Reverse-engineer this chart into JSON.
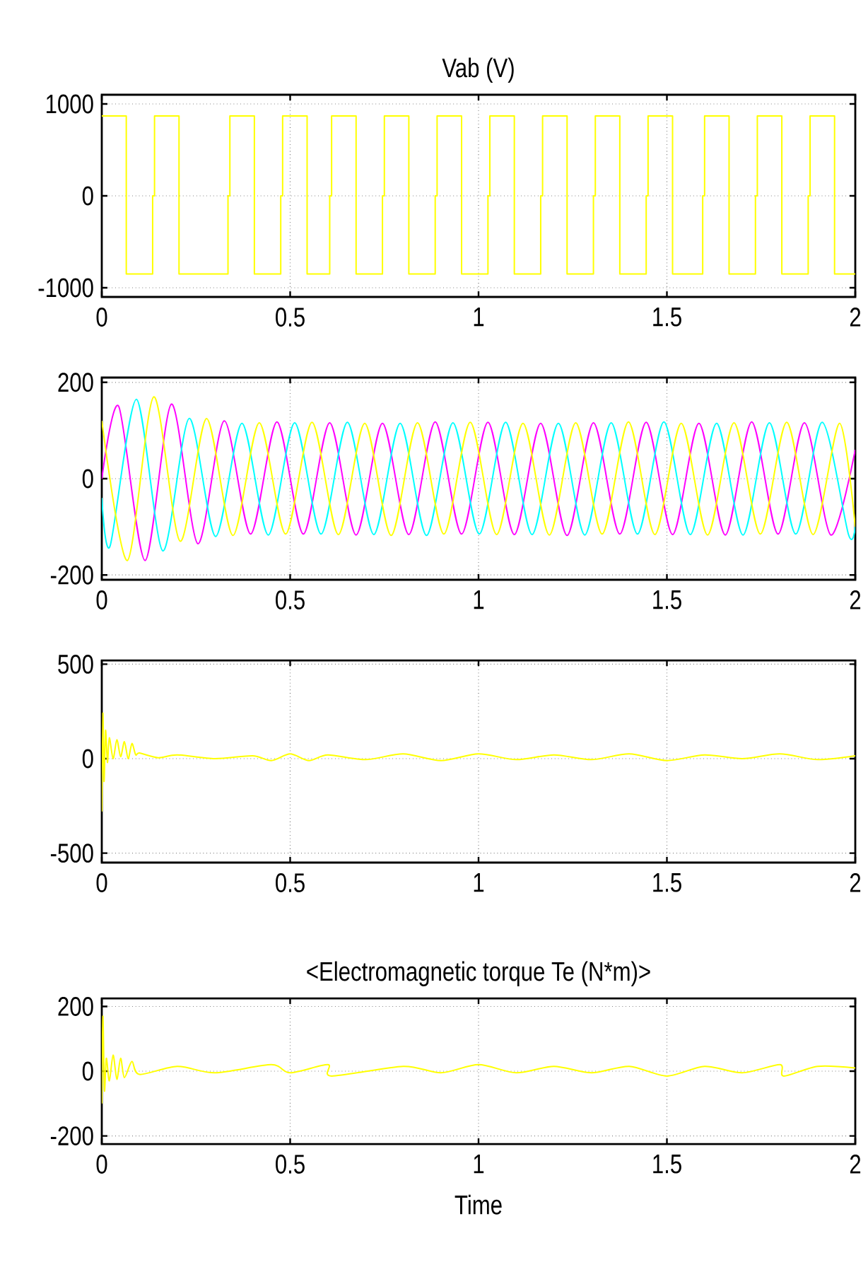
{
  "chart_data": [
    {
      "type": "step",
      "title": "Vab (V)",
      "xlim": [
        0,
        2
      ],
      "ylim": [
        -1100,
        1100
      ],
      "xticks": [
        0,
        0.5,
        1,
        1.5,
        2
      ],
      "yticks": [
        -1000,
        0,
        1000
      ],
      "grid": true,
      "series": [
        {
          "color": "#ffff00",
          "x": [
            0,
            0.065,
            0.135,
            0.14,
            0.205,
            0.335,
            0.34,
            0.405,
            0.475,
            0.48,
            0.545,
            0.605,
            0.61,
            0.675,
            0.745,
            0.75,
            0.815,
            0.885,
            0.89,
            0.955,
            1.025,
            1.03,
            1.095,
            1.165,
            1.17,
            1.235,
            1.305,
            1.31,
            1.375,
            1.445,
            1.45,
            1.515,
            1.595,
            1.6,
            1.665,
            1.735,
            1.74,
            1.805,
            1.875,
            1.88,
            1.945,
            2.0
          ],
          "values": [
            870,
            -850,
            0,
            870,
            -850,
            0,
            870,
            -850,
            0,
            870,
            -850,
            0,
            870,
            -850,
            0,
            870,
            -850,
            0,
            870,
            -850,
            0,
            870,
            -850,
            0,
            870,
            -850,
            0,
            870,
            -850,
            0,
            870,
            -850,
            0,
            870,
            -850,
            0,
            870,
            -850,
            0,
            870,
            -850,
            -850
          ]
        }
      ]
    },
    {
      "type": "line",
      "xlim": [
        0,
        2
      ],
      "ylim": [
        -210,
        210
      ],
      "xticks": [
        0,
        0.5,
        1,
        1.5,
        2
      ],
      "yticks": [
        -200,
        0,
        200
      ],
      "grid": true,
      "series": [
        {
          "color": "#ff00ff",
          "x": [
            0,
            0.045,
            0.115,
            0.185,
            0.255,
            0.325,
            0.395,
            0.465,
            0.535,
            0.605,
            0.675,
            0.745,
            0.815,
            0.885,
            0.955,
            1.025,
            1.095,
            1.165,
            1.235,
            1.305,
            1.375,
            1.445,
            1.515,
            1.585,
            1.655,
            1.725,
            1.795,
            1.865,
            1.935,
            2.0
          ],
          "values": [
            0,
            150,
            -170,
            155,
            -135,
            120,
            -115,
            118,
            -115,
            116,
            -117,
            115,
            -116,
            118,
            -115,
            117,
            -116,
            115,
            -118,
            116,
            -115,
            117,
            -116,
            115,
            -117,
            118,
            -115,
            116,
            -117,
            60
          ]
        },
        {
          "color": "#00ffff",
          "x": [
            0,
            0.022,
            0.092,
            0.162,
            0.232,
            0.302,
            0.372,
            0.442,
            0.512,
            0.582,
            0.652,
            0.722,
            0.792,
            0.862,
            0.932,
            1.002,
            1.072,
            1.142,
            1.212,
            1.282,
            1.352,
            1.422,
            1.492,
            1.562,
            1.632,
            1.702,
            1.772,
            1.842,
            1.912,
            1.982,
            2.0
          ],
          "values": [
            -40,
            -140,
            165,
            -150,
            125,
            -120,
            115,
            -117,
            116,
            -115,
            117,
            -116,
            115,
            -118,
            116,
            -115,
            117,
            -116,
            115,
            -117,
            116,
            -115,
            118,
            -116,
            115,
            -117,
            116,
            -115,
            117,
            -116,
            -100
          ]
        },
        {
          "color": "#ffff00",
          "x": [
            0,
            0.068,
            0.138,
            0.208,
            0.278,
            0.348,
            0.418,
            0.488,
            0.558,
            0.628,
            0.698,
            0.768,
            0.838,
            0.908,
            0.978,
            1.048,
            1.118,
            1.188,
            1.258,
            1.328,
            1.398,
            1.468,
            1.538,
            1.608,
            1.678,
            1.748,
            1.818,
            1.888,
            1.958,
            2.0
          ],
          "values": [
            120,
            -170,
            170,
            -130,
            125,
            -118,
            116,
            -115,
            117,
            -116,
            115,
            -118,
            116,
            -115,
            117,
            -116,
            115,
            -117,
            116,
            -115,
            118,
            -116,
            115,
            -117,
            116,
            -115,
            117,
            -116,
            115,
            -100
          ]
        }
      ]
    },
    {
      "type": "line",
      "xlim": [
        0,
        2
      ],
      "ylim": [
        -550,
        520
      ],
      "xticks": [
        0,
        0.5,
        1,
        1.5,
        2
      ],
      "yticks": [
        -500,
        0,
        500
      ],
      "grid": true,
      "series": [
        {
          "color": "#ffff00",
          "x": [
            0,
            0.003,
            0.006,
            0.01,
            0.015,
            0.02,
            0.03,
            0.04,
            0.05,
            0.06,
            0.07,
            0.08,
            0.09,
            0.1,
            0.15,
            0.2,
            0.3,
            0.4,
            0.45,
            0.5,
            0.55,
            0.6,
            0.7,
            0.8,
            0.9,
            1.0,
            1.1,
            1.2,
            1.3,
            1.4,
            1.5,
            1.6,
            1.7,
            1.8,
            1.9,
            2.0
          ],
          "values": [
            -280,
            240,
            -120,
            150,
            -20,
            110,
            0,
            100,
            10,
            90,
            0,
            80,
            20,
            30,
            5,
            20,
            0,
            15,
            -10,
            25,
            -10,
            20,
            -5,
            25,
            -10,
            25,
            -5,
            20,
            -5,
            25,
            -10,
            20,
            0,
            25,
            -5,
            15
          ]
        }
      ]
    },
    {
      "type": "line",
      "title": "<Electromagnetic torque Te (N*m)>",
      "xlabel": "Time",
      "xlim": [
        0,
        2
      ],
      "ylim": [
        -225,
        225
      ],
      "xticks": [
        0,
        0.5,
        1,
        1.5,
        2
      ],
      "yticks": [
        -200,
        0,
        200
      ],
      "grid": true,
      "series": [
        {
          "color": "#ffff00",
          "x": [
            0,
            0.003,
            0.007,
            0.012,
            0.02,
            0.03,
            0.04,
            0.05,
            0.06,
            0.08,
            0.1,
            0.2,
            0.3,
            0.45,
            0.5,
            0.6,
            0.61,
            0.8,
            0.9,
            1.0,
            1.1,
            1.2,
            1.3,
            1.4,
            1.5,
            1.6,
            1.7,
            1.8,
            1.81,
            1.9,
            2.0
          ],
          "values": [
            -100,
            170,
            -60,
            40,
            -30,
            50,
            -25,
            40,
            -20,
            30,
            -10,
            15,
            -5,
            20,
            -5,
            20,
            -15,
            15,
            -5,
            20,
            -5,
            15,
            -5,
            15,
            -15,
            15,
            -5,
            20,
            -15,
            15,
            10
          ]
        }
      ]
    }
  ]
}
